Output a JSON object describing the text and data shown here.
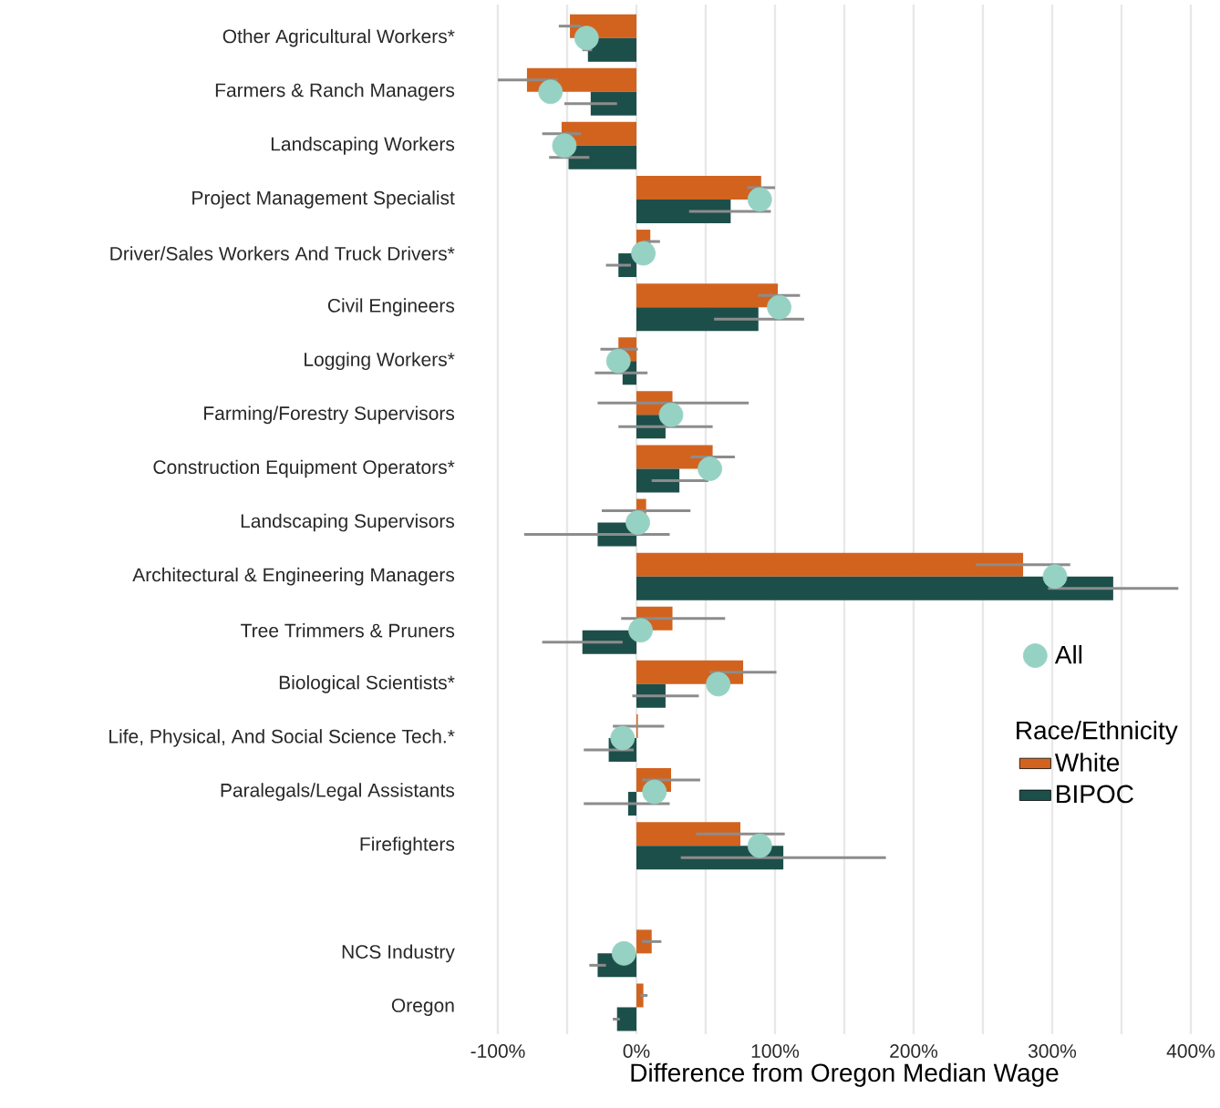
{
  "chart_data": {
    "type": "bar",
    "orientation": "horizontal",
    "categories": [
      "Other Agricultural Workers*",
      "Farmers & Ranch Managers",
      "Landscaping Workers",
      "Project Management Specialist",
      "Driver/Sales Workers And Truck Drivers*",
      "Civil Engineers",
      "Logging Workers*",
      "Farming/Forestry Supervisors",
      "Construction Equipment Operators*",
      "Landscaping Supervisors",
      "Architectural & Engineering Managers",
      "Tree Trimmers & Pruners",
      "Biological Scientists*",
      "Life, Physical, And Social Science Tech.*",
      "Paralegals/Legal Assistants",
      "Firefighters",
      null,
      "NCS Industry",
      "Oregon"
    ],
    "series": [
      {
        "name": "White",
        "color": "#d2631f",
        "values": [
          -48,
          -79,
          -54,
          90,
          10,
          102,
          -13,
          26,
          55,
          7,
          279,
          26,
          77,
          1,
          25,
          75,
          null,
          11,
          5
        ],
        "errors": [
          [
            -56,
            -40
          ],
          [
            -100,
            -57
          ],
          [
            -68,
            -40
          ],
          [
            80,
            100
          ],
          [
            5,
            17
          ],
          [
            88,
            118
          ],
          [
            -26,
            1
          ],
          [
            -28,
            81
          ],
          [
            39,
            71
          ],
          [
            -25,
            39
          ],
          [
            245,
            313
          ],
          [
            -11,
            64
          ],
          [
            53,
            101
          ],
          [
            -17,
            20
          ],
          [
            4,
            46
          ],
          [
            43,
            107
          ],
          null,
          [
            4,
            18
          ],
          [
            3,
            8
          ]
        ]
      },
      {
        "name": "BIPOC",
        "color": "#1d4f4a",
        "values": [
          -35,
          -33,
          -49,
          68,
          -13,
          88,
          -10,
          21,
          31,
          -28,
          344,
          -39,
          21,
          -20,
          -6,
          106,
          null,
          -28,
          -14
        ],
        "errors": [
          [
            -39,
            -32
          ],
          [
            -52,
            -14
          ],
          [
            -63,
            -34
          ],
          [
            38,
            97
          ],
          [
            -22,
            -4
          ],
          [
            56,
            121
          ],
          [
            -30,
            8
          ],
          [
            -13,
            55
          ],
          [
            11,
            52
          ],
          [
            -81,
            24
          ],
          [
            297,
            391
          ],
          [
            -68,
            -10
          ],
          [
            -3,
            45
          ],
          [
            -38,
            -2
          ],
          [
            -38,
            24
          ],
          [
            32,
            180
          ],
          null,
          [
            -34,
            -22
          ],
          [
            -17,
            -12
          ]
        ]
      },
      {
        "name": "All",
        "type": "scatter",
        "marker": "circle",
        "color": "#96d2c4",
        "values": [
          -36,
          -62,
          -52,
          89,
          5,
          103,
          -13,
          25,
          53,
          1,
          302,
          3,
          59,
          -10,
          13,
          89,
          null,
          -9,
          null
        ]
      }
    ],
    "xlabel": "Difference from Oregon Median Wage",
    "xlim": [
      -100,
      400
    ],
    "xticks": [
      {
        "value": -100,
        "label": "-100%"
      },
      {
        "value": 0,
        "label": "0%"
      },
      {
        "value": 100,
        "label": "100%"
      },
      {
        "value": 200,
        "label": "200%"
      },
      {
        "value": 300,
        "label": "300%"
      },
      {
        "value": 400,
        "label": "400%"
      }
    ],
    "grid": "x",
    "legend": "right",
    "legend_title": "Race/Ethnicity"
  }
}
